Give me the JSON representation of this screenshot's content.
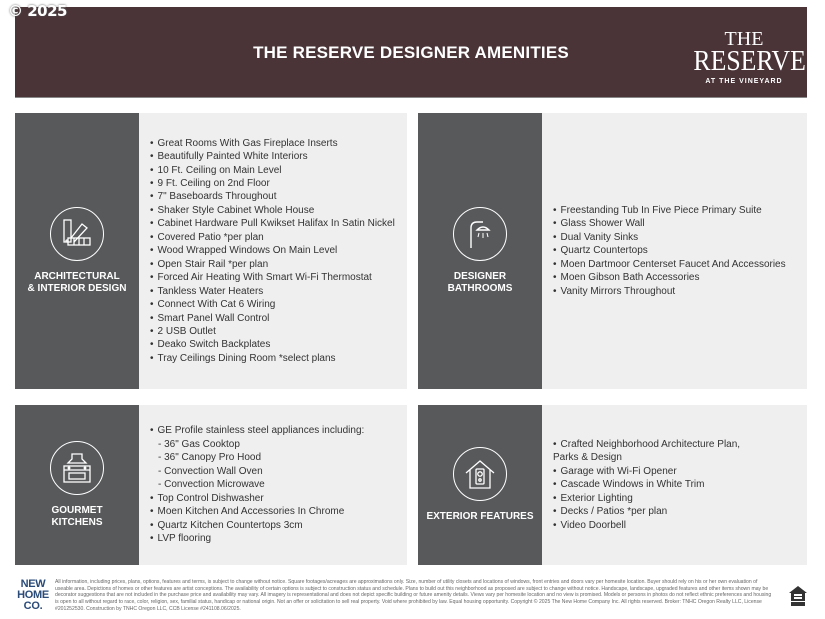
{
  "copyright": "© 2025",
  "header": {
    "title": "THE RESERVE DESIGNER AMENITIES",
    "logo": {
      "line1": "THE",
      "line2": "RESERVE",
      "line3": "AT THE VINEYARD"
    },
    "bg": "#4a3438"
  },
  "sections": [
    {
      "label": "ARCHITECTURAL\n& INTERIOR DESIGN",
      "icon": "swatch-fan-icon",
      "items": [
        {
          "text": "Great Rooms With Gas Fireplace Inserts"
        },
        {
          "text": "Beautifully Painted White Interiors"
        },
        {
          "text": "10 Ft. Ceiling on Main Level"
        },
        {
          "text": "9 Ft. Ceiling on 2nd Floor"
        },
        {
          "text": "7\" Baseboards Throughout"
        },
        {
          "text": "Shaker Style Cabinet Whole House"
        },
        {
          "text": "Cabinet Hardware Pull Kwikset Halifax In Satin Nickel"
        },
        {
          "text": "Covered Patio *per plan"
        },
        {
          "text": "Wood Wrapped Windows On Main Level"
        },
        {
          "text": "Open Stair Rail *per plan"
        },
        {
          "text": "Forced Air Heating With Smart Wi-Fi Thermostat"
        },
        {
          "text": "Tankless Water Heaters"
        },
        {
          "text": "Connect With Cat 6 Wiring"
        },
        {
          "text": "Smart Panel Wall Control"
        },
        {
          "text": "2 USB Outlet"
        },
        {
          "text": "Deako Switch Backplates"
        },
        {
          "text": "Tray Ceilings Dining Room *select plans"
        }
      ]
    },
    {
      "label": "DESIGNER\nBATHROOMS",
      "icon": "shower-icon",
      "items": [
        {
          "text": "Freestanding Tub In Five Piece Primary Suite"
        },
        {
          "text": "Glass Shower Wall"
        },
        {
          "text": "Dual Vanity Sinks"
        },
        {
          "text": "Quartz Countertops"
        },
        {
          "text": "Moen Dartmoor Centerset Faucet And Accessories"
        },
        {
          "text": "Moen Gibson Bath Accessories"
        },
        {
          "text": "Vanity Mirrors Throughout"
        }
      ]
    },
    {
      "label": "GOURMET\nKITCHENS",
      "icon": "kitchen-range-icon",
      "items": [
        {
          "text": "GE Profile stainless steel appliances including:"
        },
        {
          "text": "- 36\" Gas Cooktop",
          "sub": true
        },
        {
          "text": "- 36\" Canopy Pro Hood",
          "sub": true
        },
        {
          "text": "- Convection Wall Oven",
          "sub": true
        },
        {
          "text": "- Convection Microwave",
          "sub": true
        },
        {
          "text": "Top Control Dishwasher"
        },
        {
          "text": "Moen Kitchen And Accessories In Chrome"
        },
        {
          "text": "Quartz Kitchen Countertops 3cm"
        },
        {
          "text": "LVP flooring"
        }
      ]
    },
    {
      "label": "EXTERIOR FEATURES",
      "icon": "house-doorbell-icon",
      "items": [
        {
          "text": "Crafted Neighborhood Architecture Plan,\n   Parks & Design"
        },
        {
          "text": "Garage with Wi-Fi Opener"
        },
        {
          "text": "Cascade Windows in White Trim"
        },
        {
          "text": "Exterior Lighting"
        },
        {
          "text": "Decks / Patios *per plan"
        },
        {
          "text": "Video Doorbell"
        }
      ]
    }
  ],
  "footer": {
    "logo": "NEW HOME CO.",
    "disclaimer": "All information, including prices, plans, options, features and terms, is subject to change without notice. Square footages/acreages are approximations only. Size, number of utility closets and locations of windows, front entries and doors vary per homesite location. Buyer should rely on his or her own evaluation of useable area. Depictions of homes or other features are artist conceptions. The availability of certain options is subject to construction status and schedule. Plans to build out this neighborhood as proposed are subject to change without notice. Handscape, landscape, upgraded features and other items shown may be decorator suggestions that are not included in the purchase price and availability may vary. All imagery is representational and does not depict specific building or future amenity details. Views vary per homesite location and no view is promised. Models or persons in photos do not reflect ethnic preferences and housing is open to all without regard to race, color, religion, sex, familial status, handicap or national origin. Not an offer or solicitation to sell real property. Void where prohibited by law. Equal housing opportunity. Copyright © 2025 The New Home Company Inc. All rights reserved. Broker: TNHC Oregon Realty LLC, License #201252530. Construction by TNHC Oregon LLC, CCB License #241108.06/2025.",
    "eho_icon": "equal-housing-icon"
  }
}
